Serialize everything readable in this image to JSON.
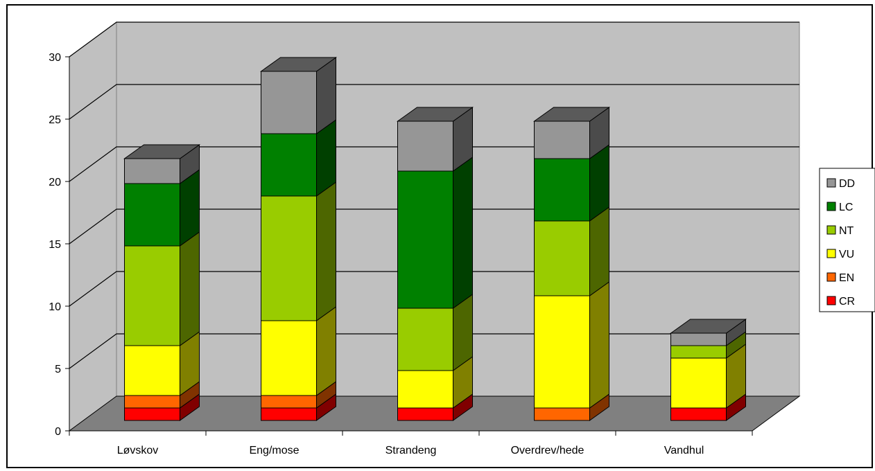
{
  "chart_data": {
    "type": "bar",
    "stacked": true,
    "three_d": true,
    "categories": [
      "Løvskov",
      "Eng/mose",
      "Strandeng",
      "Overdrev/hede",
      "Vandhul"
    ],
    "series": [
      {
        "name": "CR",
        "color": "#ff0000",
        "values": [
          1,
          1,
          1,
          0,
          1
        ]
      },
      {
        "name": "EN",
        "color": "#ff6600",
        "values": [
          1,
          1,
          0,
          1,
          0
        ]
      },
      {
        "name": "VU",
        "color": "#ffff00",
        "values": [
          4,
          6,
          3,
          9,
          4
        ]
      },
      {
        "name": "NT",
        "color": "#99cc00",
        "values": [
          8,
          10,
          5,
          6,
          1
        ]
      },
      {
        "name": "LC",
        "color": "#008000",
        "values": [
          5,
          5,
          11,
          5,
          0
        ]
      },
      {
        "name": "DD",
        "color": "#969696",
        "values": [
          2,
          5,
          4,
          3,
          1
        ]
      }
    ],
    "ylim": [
      0,
      30
    ],
    "yticks": [
      "0",
      "5",
      "10",
      "15",
      "20",
      "25",
      "30"
    ],
    "grid": true,
    "legend_position": "right",
    "title": "",
    "xlabel": "",
    "ylabel": ""
  }
}
